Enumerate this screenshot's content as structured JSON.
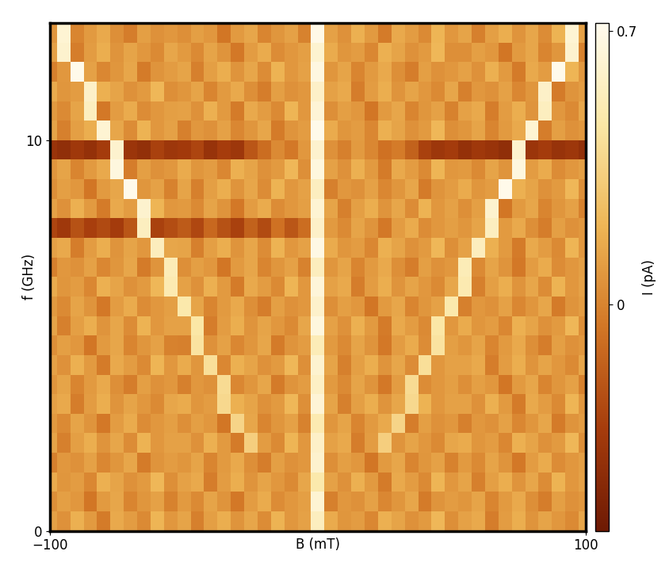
{
  "chart_data": {
    "type": "heatmap",
    "x_label": "B (mT)",
    "y_label": "f (GHz)",
    "xlim": [
      -100,
      100
    ],
    "ylim": [
      0,
      13
    ],
    "xticks": [
      {
        "value": -100,
        "label": "−100"
      },
      100
    ],
    "yticks": [
      0,
      10
    ],
    "colorbar": {
      "label": "I (pA)",
      "range": [
        -0.58,
        0.72
      ],
      "ticks": [
        0,
        0.7
      ]
    },
    "x": [
      -100,
      -95,
      -90,
      -85,
      -80,
      -75,
      -70,
      -65,
      -60,
      -55,
      -50,
      -45,
      -40,
      -35,
      -30,
      -25,
      -20,
      -15,
      -10,
      -5,
      0,
      5,
      10,
      15,
      20,
      25,
      30,
      35,
      40,
      45,
      50,
      55,
      60,
      65,
      70,
      75,
      80,
      85,
      90,
      95,
      100
    ],
    "y": [
      0.25,
      0.75,
      1.25,
      1.75,
      2.25,
      2.75,
      3.25,
      3.75,
      4.25,
      4.75,
      5.25,
      5.75,
      6.25,
      6.75,
      7.25,
      7.75,
      8.25,
      8.75,
      9.25,
      9.75,
      10.25,
      10.75,
      11.25,
      11.75,
      12.25,
      12.75
    ],
    "cells": [
      [
        0.12,
        0.05,
        0.18,
        0.09,
        -0.04,
        0.15,
        0.1,
        0.02,
        0.2,
        0.08,
        0.13,
        -0.02,
        0.11,
        0.17,
        0.06,
        0.14,
        0.03,
        0.19,
        0.08,
        0.12,
        0.55,
        0.16,
        0.07,
        0.1,
        0.01,
        0.18,
        0.13,
        0.05,
        0.09,
        0.21,
        0.04,
        0.12,
        0.15,
        -0.03,
        0.1,
        0.17,
        0.06,
        0.13,
        0.08,
        0.02,
        0.14
      ],
      [
        0.04,
        0.11,
        0.08,
        -0.06,
        0.09,
        0.14,
        0.0,
        0.07,
        0.12,
        -0.01,
        0.09,
        0.02,
        0.13,
        0.06,
        -0.05,
        0.1,
        0.16,
        0.03,
        0.08,
        0.11,
        0.62,
        -0.02,
        0.08,
        0.05,
        0.12,
        0.01,
        0.07,
        0.14,
        -0.04,
        0.06,
        0.1,
        0.07,
        0.13,
        0.0,
        0.09,
        0.15,
        0.04,
        -0.03,
        0.11,
        0.05,
        0.08
      ],
      [
        0.16,
        0.07,
        0.1,
        0.01,
        0.18,
        0.13,
        0.05,
        0.09,
        0.21,
        0.04,
        0.12,
        0.15,
        -0.03,
        0.1,
        0.17,
        0.06,
        0.13,
        0.08,
        0.02,
        0.14,
        0.48,
        0.12,
        0.05,
        0.18,
        0.09,
        -0.04,
        0.15,
        0.1,
        0.02,
        0.2,
        0.08,
        0.13,
        -0.02,
        0.11,
        0.17,
        0.06,
        0.14,
        0.03,
        0.19,
        0.08,
        0.12
      ],
      [
        -0.02,
        0.08,
        0.05,
        0.12,
        0.01,
        0.07,
        0.14,
        -0.04,
        0.06,
        0.1,
        0.07,
        0.13,
        0.0,
        0.09,
        0.15,
        0.04,
        -0.03,
        0.11,
        0.05,
        0.08,
        0.6,
        0.04,
        0.11,
        0.08,
        -0.06,
        0.09,
        0.14,
        0.0,
        0.07,
        0.12,
        -0.01,
        0.09,
        0.02,
        0.13,
        0.06,
        -0.05,
        0.1,
        0.16,
        0.03,
        0.08,
        0.11
      ],
      [
        0.13,
        -0.02,
        0.11,
        0.17,
        0.06,
        0.14,
        0.03,
        0.19,
        0.08,
        0.12,
        0.12,
        0.05,
        0.18,
        0.09,
        -0.04,
        0.33,
        0.1,
        0.02,
        0.2,
        0.08,
        0.58,
        0.12,
        0.15,
        -0.03,
        0.1,
        0.33,
        0.06,
        0.13,
        0.08,
        0.02,
        0.14,
        0.16,
        0.07,
        0.1,
        0.01,
        0.18,
        0.13,
        0.05,
        0.09,
        0.21,
        0.04
      ],
      [
        0.09,
        0.02,
        0.13,
        0.06,
        -0.05,
        0.1,
        0.16,
        0.03,
        0.08,
        0.11,
        0.04,
        0.11,
        0.08,
        -0.06,
        0.36,
        0.14,
        0.0,
        0.07,
        0.12,
        -0.01,
        0.5,
        0.07,
        0.13,
        0.0,
        0.09,
        0.15,
        0.36,
        -0.03,
        0.11,
        0.05,
        0.08,
        -0.02,
        0.08,
        0.05,
        0.12,
        0.01,
        0.07,
        0.14,
        -0.04,
        0.06,
        0.1
      ],
      [
        0.12,
        0.15,
        -0.03,
        0.1,
        0.17,
        0.06,
        0.13,
        0.08,
        0.02,
        0.14,
        0.16,
        0.07,
        0.1,
        0.38,
        0.18,
        0.13,
        0.05,
        0.09,
        0.21,
        0.04,
        0.63,
        0.13,
        -0.02,
        0.11,
        0.17,
        0.06,
        0.14,
        0.38,
        0.19,
        0.08,
        0.12,
        0.12,
        0.05,
        0.18,
        0.09,
        -0.04,
        0.15,
        0.1,
        0.02,
        0.2,
        0.08
      ],
      [
        0.07,
        0.13,
        0.0,
        0.09,
        0.15,
        0.04,
        -0.03,
        0.11,
        0.05,
        0.08,
        -0.02,
        0.08,
        0.05,
        0.4,
        0.01,
        0.07,
        0.14,
        -0.04,
        0.06,
        0.1,
        0.57,
        0.09,
        0.02,
        0.13,
        0.06,
        -0.05,
        0.1,
        0.4,
        0.03,
        0.08,
        0.11,
        0.04,
        0.11,
        0.08,
        -0.06,
        0.09,
        0.14,
        0.0,
        0.07,
        0.12,
        -0.01
      ],
      [
        0.12,
        0.05,
        0.18,
        0.09,
        -0.04,
        0.15,
        0.1,
        0.02,
        0.2,
        0.08,
        0.16,
        0.07,
        0.42,
        0.01,
        0.18,
        0.13,
        0.05,
        0.09,
        0.21,
        0.04,
        0.61,
        0.13,
        -0.02,
        0.11,
        0.17,
        0.06,
        0.14,
        0.03,
        0.42,
        0.08,
        0.12,
        0.12,
        0.15,
        -0.03,
        0.1,
        0.17,
        0.06,
        0.13,
        0.08,
        0.02,
        0.14
      ],
      [
        0.04,
        0.11,
        0.08,
        -0.06,
        0.09,
        0.14,
        0.0,
        0.07,
        0.12,
        -0.01,
        -0.02,
        0.44,
        0.05,
        0.12,
        0.01,
        0.07,
        0.14,
        -0.04,
        0.06,
        0.1,
        0.52,
        0.09,
        0.02,
        0.13,
        0.06,
        -0.05,
        0.1,
        0.16,
        0.03,
        0.44,
        0.11,
        0.07,
        0.13,
        0.0,
        0.09,
        0.15,
        0.04,
        -0.03,
        0.11,
        0.05,
        0.08
      ],
      [
        0.13,
        -0.02,
        0.11,
        0.17,
        0.06,
        0.14,
        0.03,
        0.19,
        0.08,
        0.12,
        0.12,
        0.46,
        -0.03,
        0.1,
        0.17,
        0.06,
        0.13,
        0.08,
        0.02,
        0.14,
        0.66,
        0.12,
        0.05,
        0.18,
        0.09,
        -0.04,
        0.15,
        0.1,
        0.02,
        0.46,
        0.08,
        0.16,
        0.07,
        0.1,
        0.01,
        0.18,
        0.13,
        0.05,
        0.09,
        0.21,
        0.04
      ],
      [
        0.09,
        0.02,
        0.13,
        0.06,
        -0.05,
        0.1,
        0.16,
        0.03,
        0.08,
        0.11,
        0.48,
        0.13,
        0.0,
        0.09,
        0.15,
        0.04,
        -0.03,
        0.11,
        0.05,
        0.08,
        0.59,
        0.04,
        0.11,
        0.08,
        -0.06,
        0.09,
        0.14,
        0.0,
        0.07,
        0.12,
        0.48,
        -0.02,
        0.08,
        0.05,
        0.12,
        0.01,
        0.07,
        0.14,
        -0.04,
        0.06,
        0.1
      ],
      [
        0.16,
        0.07,
        0.1,
        0.01,
        0.18,
        0.13,
        0.05,
        0.09,
        0.21,
        0.5,
        0.12,
        0.05,
        0.18,
        0.09,
        -0.04,
        0.15,
        0.1,
        0.02,
        0.2,
        0.08,
        0.64,
        0.12,
        0.15,
        -0.03,
        0.1,
        0.17,
        0.06,
        0.13,
        0.08,
        0.02,
        0.14,
        0.5,
        -0.02,
        0.11,
        0.17,
        0.06,
        0.14,
        0.03,
        0.19,
        0.08,
        0.12
      ],
      [
        -0.02,
        0.08,
        0.05,
        0.12,
        0.01,
        0.07,
        0.14,
        -0.04,
        0.06,
        0.52,
        0.04,
        0.11,
        0.08,
        -0.06,
        0.09,
        0.14,
        0.0,
        0.07,
        0.12,
        -0.01,
        0.54,
        0.07,
        0.13,
        0.0,
        0.09,
        0.15,
        0.04,
        -0.03,
        0.11,
        0.05,
        0.08,
        0.52,
        0.02,
        0.13,
        0.06,
        -0.05,
        0.1,
        0.16,
        0.03,
        0.08,
        0.11
      ],
      [
        0.12,
        0.15,
        -0.03,
        0.1,
        0.17,
        0.06,
        0.13,
        0.08,
        0.54,
        0.14,
        0.13,
        -0.02,
        0.11,
        0.17,
        0.06,
        0.14,
        0.03,
        0.19,
        0.08,
        0.12,
        0.68,
        0.16,
        0.07,
        0.1,
        0.01,
        0.18,
        0.13,
        0.05,
        0.09,
        0.21,
        0.04,
        0.12,
        0.54,
        0.18,
        0.09,
        -0.04,
        0.15,
        0.1,
        0.02,
        0.2,
        0.08
      ],
      [
        -0.28,
        -0.35,
        -0.22,
        -0.31,
        -0.26,
        -0.33,
        -0.2,
        0.55,
        -0.3,
        -0.24,
        -0.18,
        -0.27,
        -0.12,
        -0.22,
        -0.3,
        -0.15,
        -0.25,
        -0.08,
        -0.2,
        -0.1,
        0.58,
        0.09,
        0.02,
        0.13,
        0.06,
        -0.05,
        0.1,
        0.16,
        0.03,
        0.08,
        0.11,
        0.07,
        0.13,
        0.55,
        0.09,
        0.15,
        0.04,
        -0.03,
        0.11,
        0.05,
        0.08
      ],
      [
        0.12,
        0.05,
        0.18,
        0.09,
        -0.04,
        0.15,
        0.1,
        0.6,
        0.2,
        0.08,
        0.09,
        0.02,
        0.13,
        0.06,
        -0.05,
        0.1,
        0.16,
        0.03,
        0.08,
        0.11,
        0.62,
        0.13,
        -0.02,
        0.11,
        0.17,
        0.06,
        0.14,
        0.03,
        0.19,
        0.08,
        0.12,
        0.04,
        0.11,
        0.6,
        -0.06,
        0.09,
        0.14,
        0.0,
        0.07,
        0.12,
        -0.01
      ],
      [
        0.04,
        0.11,
        0.08,
        -0.06,
        0.09,
        0.14,
        0.7,
        0.07,
        0.12,
        -0.01,
        0.13,
        -0.02,
        0.11,
        0.17,
        0.06,
        0.14,
        0.03,
        0.19,
        0.08,
        0.12,
        0.55,
        -0.02,
        0.08,
        0.05,
        0.12,
        0.01,
        0.07,
        0.14,
        -0.04,
        0.06,
        0.1,
        0.16,
        0.07,
        0.1,
        0.7,
        0.18,
        0.13,
        0.05,
        0.09,
        0.21,
        0.04
      ],
      [
        0.07,
        0.13,
        0.0,
        0.09,
        0.15,
        0.66,
        -0.03,
        0.11,
        0.05,
        0.08,
        0.16,
        0.07,
        0.1,
        0.01,
        0.18,
        0.13,
        0.05,
        0.09,
        0.21,
        0.04,
        0.66,
        0.12,
        0.05,
        0.18,
        0.09,
        -0.04,
        0.15,
        0.1,
        0.02,
        0.2,
        0.08,
        0.09,
        0.02,
        0.13,
        0.06,
        0.66,
        0.1,
        0.16,
        0.03,
        0.08,
        0.11
      ],
      [
        -0.38,
        -0.42,
        -0.35,
        -0.4,
        -0.33,
        0.6,
        -0.37,
        -0.41,
        -0.3,
        -0.36,
        -0.34,
        -0.28,
        -0.39,
        -0.32,
        -0.36,
        -0.2,
        -0.1,
        0.02,
        -0.05,
        0.08,
        0.6,
        0.05,
        -0.02,
        0.09,
        0.01,
        -0.08,
        -0.04,
        -0.15,
        -0.3,
        -0.36,
        -0.33,
        -0.4,
        -0.35,
        -0.38,
        -0.42,
        0.6,
        -0.37,
        -0.33,
        -0.39,
        -0.36,
        -0.41
      ],
      [
        0.13,
        -0.02,
        0.11,
        0.17,
        0.62,
        0.14,
        0.03,
        0.19,
        0.08,
        0.12,
        -0.02,
        0.08,
        0.05,
        0.12,
        0.01,
        0.07,
        0.14,
        -0.04,
        0.06,
        0.1,
        0.7,
        0.16,
        0.07,
        0.1,
        0.01,
        0.18,
        0.13,
        0.05,
        0.09,
        0.21,
        0.04,
        0.07,
        0.13,
        0.0,
        0.09,
        0.15,
        0.62,
        -0.03,
        0.11,
        0.05,
        0.08
      ],
      [
        0.09,
        0.02,
        0.13,
        0.55,
        -0.05,
        0.1,
        0.16,
        0.03,
        0.08,
        0.11,
        0.12,
        0.05,
        0.18,
        0.09,
        -0.04,
        0.15,
        0.1,
        0.02,
        0.2,
        0.08,
        0.63,
        0.04,
        0.11,
        0.08,
        -0.06,
        0.09,
        0.14,
        0.0,
        0.07,
        0.12,
        -0.01,
        0.12,
        0.15,
        -0.03,
        0.1,
        0.17,
        0.06,
        0.55,
        0.08,
        0.02,
        0.14
      ],
      [
        0.16,
        0.07,
        0.1,
        0.58,
        0.18,
        0.13,
        0.05,
        0.09,
        0.21,
        0.04,
        0.07,
        0.13,
        0.0,
        0.09,
        0.15,
        0.04,
        -0.03,
        0.11,
        0.05,
        0.08,
        0.58,
        0.12,
        0.15,
        -0.03,
        0.1,
        0.17,
        0.06,
        0.13,
        0.08,
        0.02,
        0.14,
        -0.02,
        0.08,
        0.05,
        0.12,
        0.01,
        0.07,
        0.58,
        -0.04,
        0.06,
        0.1
      ],
      [
        -0.02,
        0.08,
        0.7,
        0.12,
        0.01,
        0.07,
        0.14,
        -0.04,
        0.06,
        0.1,
        0.13,
        -0.02,
        0.11,
        0.17,
        0.06,
        0.14,
        0.03,
        0.19,
        0.08,
        0.12,
        0.67,
        0.07,
        0.13,
        0.0,
        0.09,
        0.15,
        0.04,
        -0.03,
        0.11,
        0.05,
        0.08,
        0.12,
        0.05,
        0.18,
        0.09,
        -0.04,
        0.15,
        0.1,
        0.7,
        0.2,
        0.08
      ],
      [
        0.12,
        0.6,
        -0.03,
        0.1,
        0.17,
        0.06,
        0.13,
        0.08,
        0.02,
        0.14,
        0.09,
        0.02,
        0.13,
        0.06,
        -0.05,
        0.1,
        0.16,
        0.03,
        0.08,
        0.11,
        0.61,
        0.16,
        0.07,
        0.1,
        0.01,
        0.18,
        0.13,
        0.05,
        0.09,
        0.21,
        0.04,
        0.04,
        0.11,
        0.08,
        -0.06,
        0.09,
        0.14,
        0.0,
        0.07,
        0.6,
        -0.01
      ],
      [
        0.07,
        0.62,
        0.0,
        0.09,
        0.15,
        0.04,
        -0.03,
        0.11,
        0.05,
        0.08,
        0.04,
        0.11,
        0.08,
        -0.06,
        0.09,
        0.14,
        0.0,
        0.07,
        0.12,
        -0.01,
        0.69,
        0.12,
        0.05,
        0.18,
        0.09,
        -0.04,
        0.15,
        0.1,
        0.02,
        0.2,
        0.08,
        0.13,
        -0.02,
        0.11,
        0.17,
        0.06,
        0.14,
        0.03,
        0.19,
        0.62,
        0.12
      ]
    ]
  }
}
